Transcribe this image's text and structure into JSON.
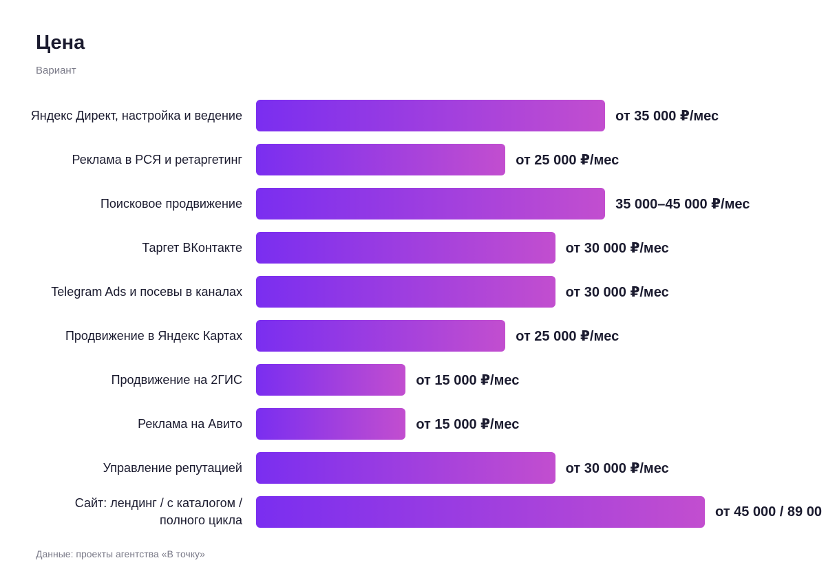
{
  "chart_data": {
    "type": "bar",
    "title": "Цена",
    "subtitle": "Вариант",
    "categories": [
      "Яндекс Директ, настройка и ведение",
      "Реклама в РСЯ и ретаргетинг",
      "Поисковое продвижение",
      "Таргет ВКонтакте",
      "Telegram Ads и посевы в каналах",
      "Продвижение в Яндекс Картах",
      "Продвижение на 2ГИС",
      "Реклама на Авито",
      "Управление репутацией",
      "Сайт: лендинг / с каталогом / полного цикла"
    ],
    "values": [
      35000,
      25000,
      35000,
      30000,
      30000,
      25000,
      15000,
      15000,
      30000,
      45000
    ],
    "value_labels": [
      "от 35 000 ₽/мес",
      "от 25 000 ₽/мес",
      "35 000–45 000 ₽/мес",
      "от 30 000 ₽/мес",
      "от 30 000 ₽/мес",
      "от 25 000 ₽/мес",
      "от 15 000 ₽/мес",
      "от 15 000 ₽/мес",
      "от 30 000 ₽/мес",
      "от 45 000 / 89 00"
    ],
    "gradient": [
      "#7a2ef0",
      "#c24ecf"
    ],
    "source": "Данные: проекты агентства «В точку»"
  }
}
